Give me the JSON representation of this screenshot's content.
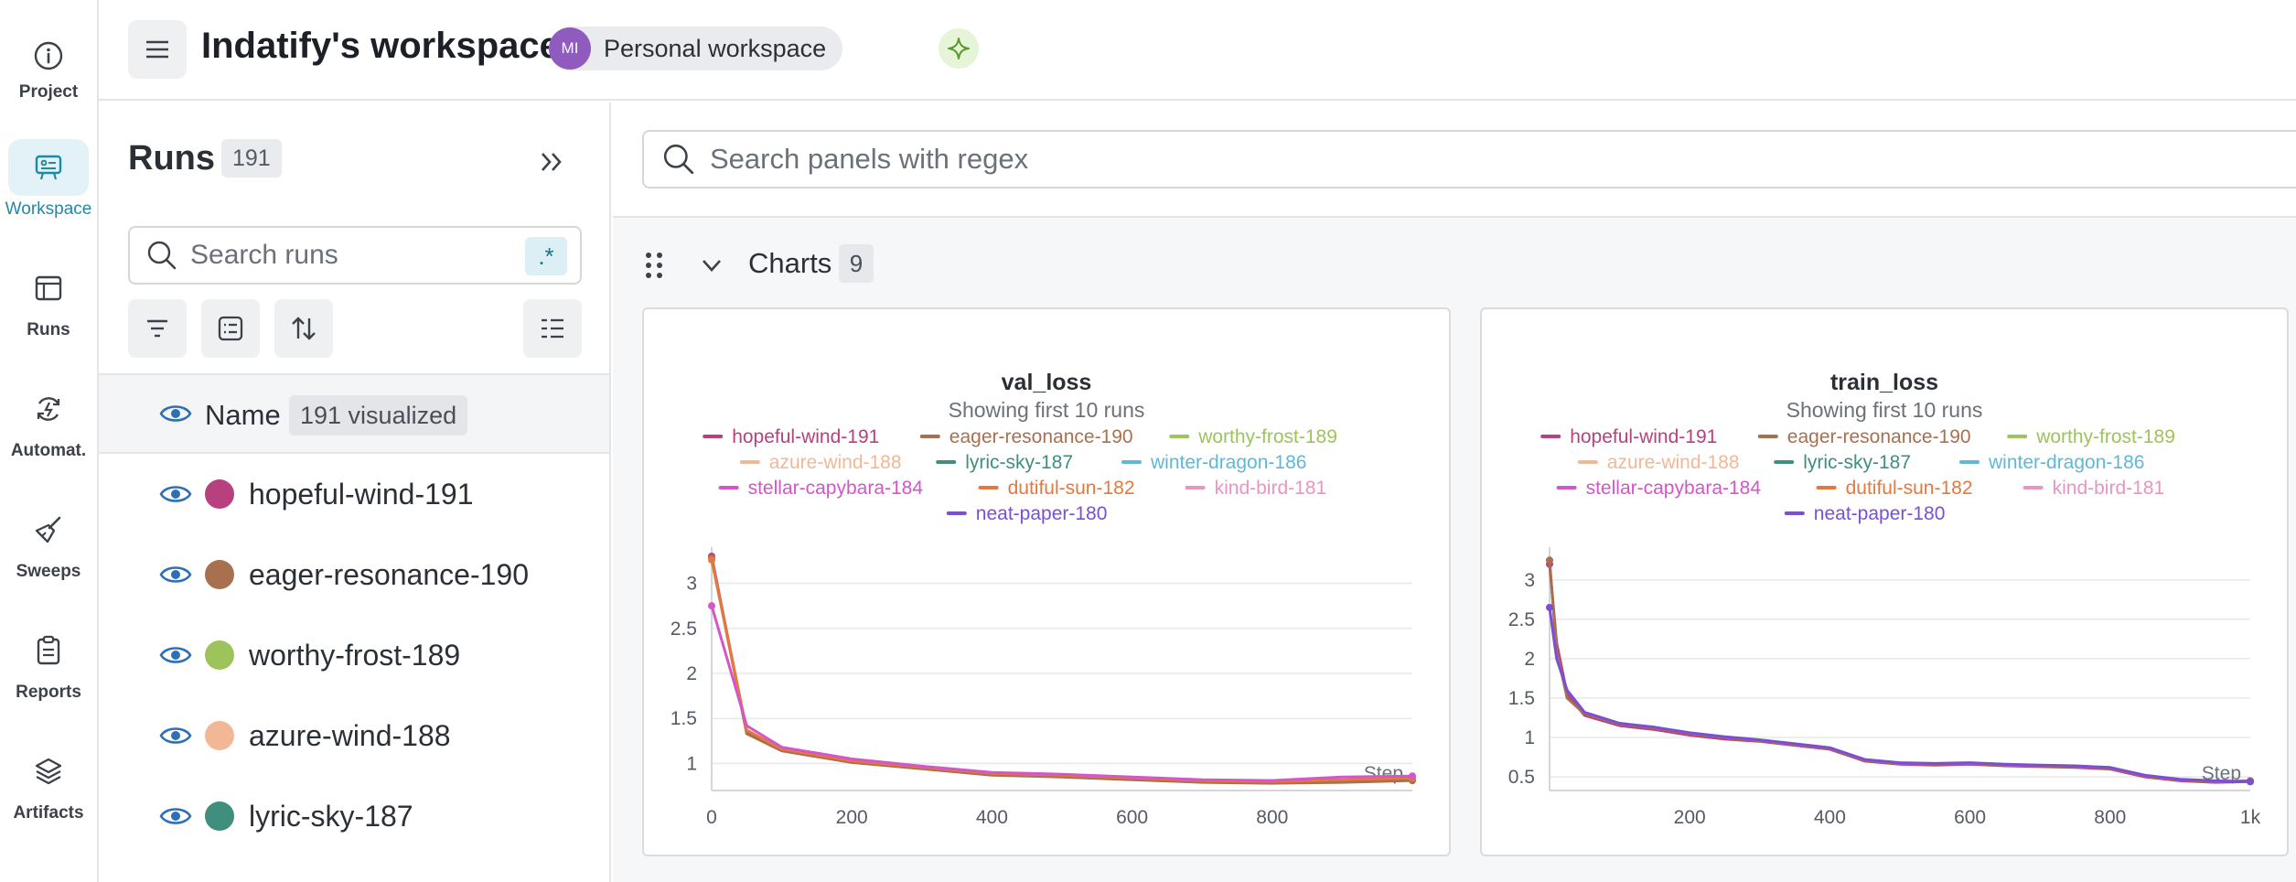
{
  "nav": {
    "items": [
      {
        "label": "Project",
        "icon": "info-icon"
      },
      {
        "label": "Workspace",
        "icon": "workspace-icon",
        "active": true
      },
      {
        "label": "Runs",
        "icon": "table-icon"
      },
      {
        "label": "Automat.",
        "icon": "automation-icon"
      },
      {
        "label": "Sweeps",
        "icon": "broom-icon"
      },
      {
        "label": "Reports",
        "icon": "clipboard-icon"
      },
      {
        "label": "Artifacts",
        "icon": "layers-icon"
      }
    ]
  },
  "header": {
    "title": "Indatify's workspace",
    "workspace_avatar": "MI",
    "workspace_label": "Personal workspace"
  },
  "runs_panel": {
    "title": "Runs",
    "count": "191",
    "search_placeholder": "Search runs",
    "regex_label": ".*",
    "name_header": "Name",
    "visualized_label": "191 visualized",
    "rows": [
      {
        "name": "hopeful-wind-191",
        "color": "#b8407f"
      },
      {
        "name": "eager-resonance-190",
        "color": "#a8704f"
      },
      {
        "name": "worthy-frost-189",
        "color": "#9dc45a"
      },
      {
        "name": "azure-wind-188",
        "color": "#f2b896"
      },
      {
        "name": "lyric-sky-187",
        "color": "#3f8e7e"
      }
    ]
  },
  "main": {
    "panel_search_placeholder": "Search panels with regex",
    "section_label": "Charts",
    "section_count": "9"
  },
  "legend_runs": [
    {
      "name": "hopeful-wind-191",
      "color": "#b8407f"
    },
    {
      "name": "eager-resonance-190",
      "color": "#a8704f"
    },
    {
      "name": "worthy-frost-189",
      "color": "#9dc45a"
    },
    {
      "name": "azure-wind-188",
      "color": "#f2b896"
    },
    {
      "name": "lyric-sky-187",
      "color": "#3f8e7e"
    },
    {
      "name": "winter-dragon-186",
      "color": "#5fb8d6"
    },
    {
      "name": "stellar-capybara-184",
      "color": "#d456c9"
    },
    {
      "name": "dutiful-sun-182",
      "color": "#e5793d"
    },
    {
      "name": "kind-bird-181",
      "color": "#ea94c2"
    },
    {
      "name": "neat-paper-180",
      "color": "#7a4fd6"
    }
  ],
  "chart_data": [
    {
      "type": "line",
      "title": "val_loss",
      "subtitle": "Showing first 10 runs",
      "xlabel": "Step",
      "ylabel": "",
      "xlim": [
        0,
        1000
      ],
      "ylim": [
        0.72,
        3.3
      ],
      "xticks": [
        0,
        200,
        400,
        600,
        800
      ],
      "yticks": [
        1,
        1.5,
        2,
        2.5,
        3
      ],
      "grid": true,
      "legend": "top",
      "series": [
        {
          "name": "hopeful-wind-191",
          "x": [
            0,
            50,
            100,
            200,
            300,
            400,
            500,
            600,
            700,
            800,
            900,
            1000
          ],
          "y": [
            3.3,
            1.35,
            1.15,
            1.02,
            0.95,
            0.88,
            0.86,
            0.83,
            0.8,
            0.79,
            0.8,
            0.82
          ]
        },
        {
          "name": "eager-resonance-190",
          "x": [
            0,
            50,
            100,
            200,
            300,
            400,
            500,
            600,
            700,
            800,
            900,
            1000
          ],
          "y": [
            3.28,
            1.33,
            1.14,
            1.01,
            0.94,
            0.87,
            0.85,
            0.82,
            0.79,
            0.78,
            0.79,
            0.81
          ]
        },
        {
          "name": "dutiful-sun-182",
          "x": [
            0,
            50,
            100,
            200,
            300,
            400,
            500,
            600,
            700,
            800,
            900,
            1000
          ],
          "y": [
            3.26,
            1.37,
            1.16,
            1.03,
            0.96,
            0.89,
            0.87,
            0.84,
            0.81,
            0.8,
            0.82,
            0.84
          ]
        },
        {
          "name": "stellar-capybara-184",
          "x": [
            0,
            50,
            100,
            200,
            300,
            400,
            500,
            600,
            700,
            800,
            900,
            1000
          ],
          "y": [
            2.75,
            1.42,
            1.18,
            1.05,
            0.97,
            0.9,
            0.88,
            0.85,
            0.82,
            0.81,
            0.85,
            0.86
          ]
        }
      ]
    },
    {
      "type": "line",
      "title": "train_loss",
      "subtitle": "Showing first 10 runs",
      "xlabel": "Step",
      "ylabel": "",
      "xlim": [
        0,
        1000
      ],
      "ylim": [
        0.35,
        3.3
      ],
      "xticks": [
        200,
        400,
        600,
        800,
        1000
      ],
      "xticklabels": [
        "200",
        "400",
        "600",
        "800",
        "1k"
      ],
      "yticks": [
        0.5,
        1,
        1.5,
        2,
        2.5,
        3
      ],
      "grid": true,
      "legend": "top",
      "series": [
        {
          "name": "hopeful-wind-191",
          "x": [
            0,
            10,
            25,
            50,
            100,
            150,
            200,
            250,
            300,
            350,
            400,
            450,
            500,
            550,
            600,
            650,
            700,
            750,
            800,
            850,
            900,
            950,
            1000
          ],
          "y": [
            3.2,
            2.2,
            1.55,
            1.28,
            1.15,
            1.1,
            1.03,
            0.98,
            0.95,
            0.9,
            0.85,
            0.7,
            0.66,
            0.65,
            0.66,
            0.64,
            0.63,
            0.62,
            0.6,
            0.5,
            0.45,
            0.43,
            0.44
          ]
        },
        {
          "name": "eager-resonance-190",
          "x": [
            0,
            10,
            25,
            50,
            100,
            150,
            200,
            250,
            300,
            350,
            400,
            450,
            500,
            550,
            600,
            650,
            700,
            750,
            800,
            850,
            900,
            950,
            1000
          ],
          "y": [
            3.25,
            2.1,
            1.5,
            1.3,
            1.17,
            1.12,
            1.05,
            1.0,
            0.96,
            0.91,
            0.86,
            0.71,
            0.67,
            0.66,
            0.67,
            0.65,
            0.64,
            0.63,
            0.61,
            0.51,
            0.46,
            0.44,
            0.45
          ]
        },
        {
          "name": "neat-paper-180",
          "x": [
            0,
            10,
            25,
            50,
            100,
            150,
            200,
            250,
            300,
            350,
            400,
            450,
            500,
            550,
            600,
            650,
            700,
            750,
            800,
            850,
            900,
            950,
            1000
          ],
          "y": [
            2.65,
            2.0,
            1.6,
            1.32,
            1.18,
            1.13,
            1.06,
            1.01,
            0.97,
            0.92,
            0.87,
            0.72,
            0.68,
            0.67,
            0.68,
            0.66,
            0.65,
            0.64,
            0.62,
            0.52,
            0.47,
            0.45,
            0.44
          ]
        }
      ]
    }
  ]
}
